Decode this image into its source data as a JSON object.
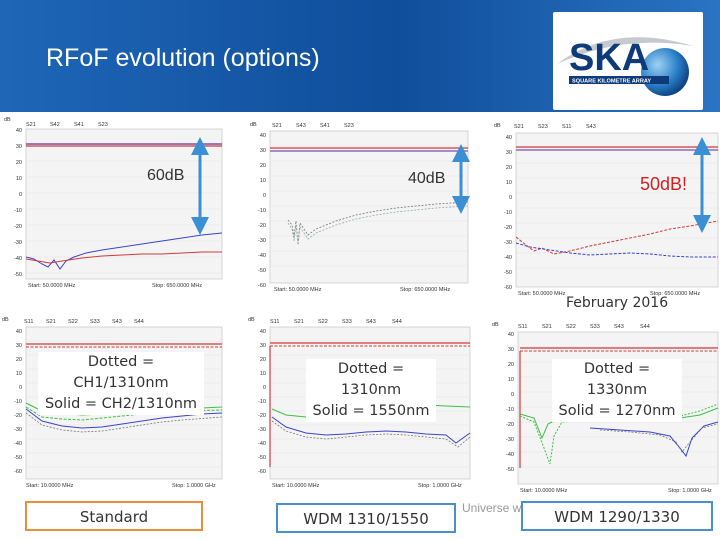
{
  "header": {
    "title": "RFoF evolution (options)",
    "logo_text": "SKA",
    "logo_subtext": "SQUARE KILOMETRE ARRAY",
    "bg_color": "#1a5fac"
  },
  "annotations": {
    "plot1_gap": "60dB",
    "plot2_gap": "40dB",
    "plot3_gap": "50dB!",
    "plot3_date": "February 2016",
    "arrow_color": "#3b8fd4",
    "alert_color": "#d32020"
  },
  "plots": [
    {
      "unit": "dB",
      "legend": [
        "S21",
        "S42",
        "S41",
        "S23"
      ],
      "y_ticks": [
        "40",
        "30",
        "20",
        "10",
        "0",
        "-10",
        "-20",
        "-30",
        "-40",
        "-50"
      ],
      "start": "Start: 50.0000 MHz",
      "stop": "Stop: 650.0000 MHz"
    },
    {
      "unit": "dB",
      "legend": [
        "S21",
        "S43",
        "S41",
        "S23"
      ],
      "y_ticks": [
        "40",
        "30",
        "20",
        "10",
        "0",
        "-10",
        "-20",
        "-30",
        "-40",
        "-50",
        "-60"
      ],
      "start": "Start: 50.0000 MHz",
      "stop": "Stop: 650.0000 MHz"
    },
    {
      "unit": "dB",
      "legend": [
        "S21",
        "S23",
        "S11",
        "S43"
      ],
      "y_ticks": [
        "40",
        "30",
        "20",
        "10",
        "0",
        "-10",
        "-20",
        "-30",
        "-40",
        "-50",
        "-60"
      ],
      "start": "Start: 50.0000 MHz",
      "stop": "Stop: 650.0000 MHz"
    },
    {
      "unit": "dB",
      "legend": [
        "S11",
        "S21",
        "S22",
        "S33",
        "S43",
        "S44"
      ],
      "y_ticks": [
        "40",
        "30",
        "20",
        "10",
        "0",
        "-10",
        "-20",
        "-30",
        "-40",
        "-50",
        "-60"
      ],
      "start": "Start: 10.0000 MHz",
      "stop": "Stop: 1.0000 GHz"
    },
    {
      "unit": "dB",
      "legend": [
        "S11",
        "S21",
        "S22",
        "S33",
        "S43",
        "S44"
      ],
      "y_ticks": [
        "40",
        "30",
        "20",
        "10",
        "0",
        "-10",
        "-20",
        "-30",
        "-40",
        "-50",
        "-60"
      ],
      "start": "Start: 10.0000 MHz",
      "stop": "Stop: 1.0000 GHz"
    },
    {
      "unit": "dB",
      "legend": [
        "S11",
        "S21",
        "S22",
        "S33",
        "S43",
        "S44"
      ],
      "y_ticks": [
        "40",
        "30",
        "20",
        "10",
        "0",
        "-10",
        "-20",
        "-30",
        "-40",
        "-50"
      ],
      "start": "Start: 10.0000 MHz",
      "stop": "Stop: 1.0000 GHz"
    }
  ],
  "notes": {
    "n1_line1": "Dotted = CH1/1310nm",
    "n1_line2": "Solid = CH2/1310nm",
    "n2_line1": "Dotted = 1310nm",
    "n2_line2": "Solid = 1550nm",
    "n3_line1": "Dotted = 1330nm",
    "n3_line2": "Solid = 1270nm"
  },
  "footer": {
    "standard": "Standard",
    "wdm1": "WDM 1310/1550",
    "wdm2": "WDM 1290/1330",
    "standard_color": "#e8913a",
    "wdm_color": "#4a8fd1",
    "ghost_text": "Universe with"
  }
}
